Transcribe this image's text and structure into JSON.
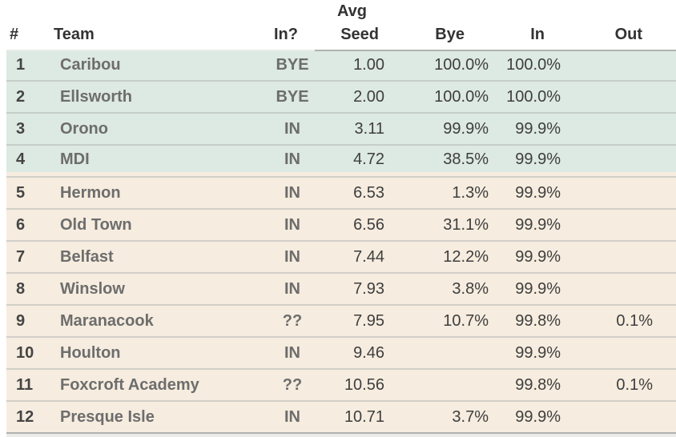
{
  "header": {
    "rank": "#",
    "team": "Team",
    "in_question": "In?",
    "avg": "Avg",
    "seed": "Seed",
    "bye": "Bye",
    "in": "In",
    "out": "Out"
  },
  "sections": {
    "bye_zone": {
      "rows": [
        {
          "rank": "1",
          "team": "Caribou",
          "status": "BYE",
          "seed": "1.00",
          "bye": "100.0%",
          "in": "100.0%",
          "out": ""
        },
        {
          "rank": "2",
          "team": "Ellsworth",
          "status": "BYE",
          "seed": "2.00",
          "bye": "100.0%",
          "in": "100.0%",
          "out": ""
        },
        {
          "rank": "3",
          "team": "Orono",
          "status": "IN",
          "seed": "3.11",
          "bye": "99.9%",
          "in": "99.9%",
          "out": ""
        },
        {
          "rank": "4",
          "team": "MDI",
          "status": "IN",
          "seed": "4.72",
          "bye": "38.5%",
          "in": "99.9%",
          "out": ""
        }
      ]
    },
    "in_zone": {
      "rows": [
        {
          "rank": "5",
          "team": "Hermon",
          "status": "IN",
          "seed": "6.53",
          "bye": "1.3%",
          "in": "99.9%",
          "out": ""
        },
        {
          "rank": "6",
          "team": "Old Town",
          "status": "IN",
          "seed": "6.56",
          "bye": "31.1%",
          "in": "99.9%",
          "out": ""
        },
        {
          "rank": "7",
          "team": "Belfast",
          "status": "IN",
          "seed": "7.44",
          "bye": "12.2%",
          "in": "99.9%",
          "out": ""
        },
        {
          "rank": "8",
          "team": "Winslow",
          "status": "IN",
          "seed": "7.93",
          "bye": "3.8%",
          "in": "99.9%",
          "out": ""
        },
        {
          "rank": "9",
          "team": "Maranacook",
          "status": "??",
          "seed": "7.95",
          "bye": "10.7%",
          "in": "99.8%",
          "out": "0.1%"
        },
        {
          "rank": "10",
          "team": "Houlton",
          "status": "IN",
          "seed": "9.46",
          "bye": "",
          "in": "99.9%",
          "out": ""
        },
        {
          "rank": "11",
          "team": "Foxcroft Academy",
          "status": "??",
          "seed": "10.56",
          "bye": "",
          "in": "99.8%",
          "out": "0.1%"
        },
        {
          "rank": "12",
          "team": "Presque Isle",
          "status": "IN",
          "seed": "10.71",
          "bye": "3.7%",
          "in": "99.9%",
          "out": ""
        }
      ]
    }
  },
  "colors": {
    "bye_zone_bg": "#dde9e3",
    "in_zone_bg": "#f6ecdf",
    "header_text": "#333333",
    "team_text": "#6d6d6d",
    "value_text": "#3e3e3e"
  }
}
